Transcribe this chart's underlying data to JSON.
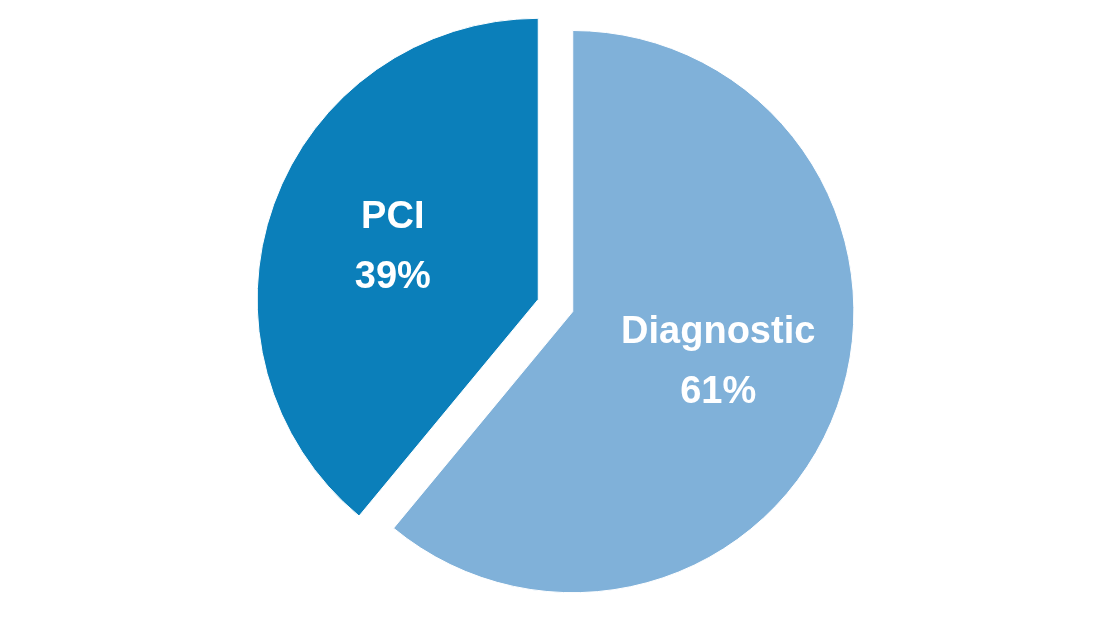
{
  "chart_data": {
    "type": "pie",
    "categories": [
      "PCI",
      "Diagnostic"
    ],
    "values": [
      39,
      61
    ],
    "colors": [
      "#0b7fba",
      "#80b1d9"
    ],
    "value_labels": [
      "39%",
      "61%"
    ]
  }
}
